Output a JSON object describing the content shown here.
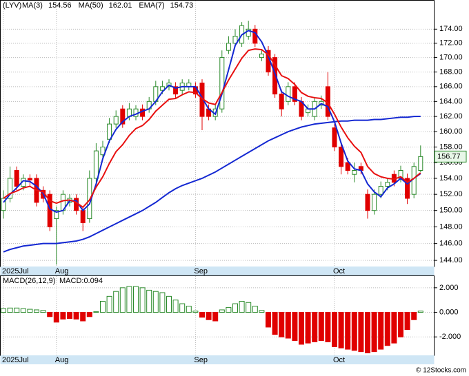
{
  "chart_data": [
    {
      "type": "candlestick",
      "title": "(LYV)",
      "categories": [
        "2025Jul",
        null,
        null,
        null,
        null,
        null,
        null,
        null,
        "Aug",
        null,
        null,
        null,
        null,
        null,
        null,
        null,
        null,
        null,
        null,
        null,
        null,
        null,
        null,
        null,
        null,
        null,
        null,
        null,
        null,
        "Sep",
        null,
        null,
        null,
        null,
        null,
        null,
        null,
        null,
        null,
        null,
        null,
        null,
        null,
        null,
        null,
        null,
        null,
        null,
        null,
        null,
        "Oct",
        null,
        null,
        null,
        null,
        null,
        null,
        null,
        null,
        null,
        null,
        null,
        null,
        null
      ],
      "open": [
        150,
        151.5,
        155,
        153,
        154,
        154,
        152.5,
        152,
        149,
        150,
        151,
        151.5,
        150,
        149,
        154,
        157,
        159,
        161,
        163,
        162,
        162,
        163,
        163,
        164,
        165.5,
        166,
        166,
        165.5,
        166,
        166,
        166.5,
        163,
        162,
        163,
        171,
        172,
        172,
        173,
        174,
        170,
        171,
        170,
        165,
        164,
        166,
        164,
        162.5,
        162,
        163.5,
        166,
        160.5,
        158,
        156,
        154.5,
        155.5,
        152,
        150,
        152,
        153,
        154.5,
        154,
        154,
        152,
        155
      ],
      "high": [
        152.5,
        155.5,
        155.5,
        154.5,
        154.5,
        154.5,
        153,
        152.5,
        150.5,
        152.5,
        152,
        152,
        150.5,
        155,
        158.5,
        158.8,
        161.8,
        162.8,
        163.5,
        163.8,
        163.5,
        163.6,
        164.6,
        166.8,
        166.8,
        167,
        166.6,
        167,
        167,
        166.6,
        167,
        163.6,
        163.6,
        171,
        173,
        174,
        175,
        175.2,
        174.6,
        171,
        171.6,
        170.5,
        165.6,
        166.6,
        166.6,
        164.6,
        163.6,
        164.6,
        164.8,
        168,
        161,
        158.6,
        156.6,
        156,
        156,
        152.6,
        152.6,
        153.6,
        154,
        155,
        155.6,
        154.6,
        156,
        158.2
      ],
      "low": [
        149,
        151,
        152.5,
        152.5,
        153,
        150.5,
        151,
        147.5,
        143.5,
        149.5,
        150.5,
        149.5,
        147.5,
        148.5,
        153.5,
        156.5,
        158.5,
        160.5,
        160.5,
        161.5,
        161.5,
        161.5,
        162.5,
        163.5,
        165,
        165.5,
        164.5,
        165,
        165.5,
        164.5,
        160.2,
        161.5,
        161.5,
        162.5,
        170.5,
        171.5,
        171.5,
        172.5,
        171.5,
        169.5,
        167.5,
        164.5,
        162,
        163.5,
        163.5,
        161.5,
        162,
        161.5,
        163,
        161.5,
        157.5,
        154.5,
        154.5,
        153.5,
        154.5,
        149,
        149.5,
        151.5,
        152.5,
        153,
        153.5,
        150.8,
        151.5,
        154.8
      ],
      "close": [
        151.5,
        154,
        153,
        154,
        153.8,
        151,
        151.5,
        148,
        150,
        152,
        151.5,
        150,
        148.5,
        154,
        157.5,
        158,
        161,
        162,
        161,
        163,
        163,
        162,
        164,
        166,
        166,
        166.5,
        165,
        166.5,
        166.5,
        165,
        162,
        162,
        163,
        170,
        172,
        173,
        174.5,
        174,
        172,
        170.5,
        168,
        165,
        163,
        166,
        164,
        162,
        163,
        164,
        164,
        162,
        158,
        155.5,
        155,
        155,
        155,
        150,
        152,
        153,
        153.5,
        153.5,
        155,
        151.5,
        155.5,
        156.77
      ],
      "up_color": "#2a8a2a",
      "down_color": "#e00000",
      "series": [
        {
          "name": "MA(3)",
          "value": 154.56,
          "color": "#1428d2",
          "values": [
            151,
            152,
            152.8,
            153.7,
            153.6,
            153,
            152.1,
            150.2,
            149.8,
            150,
            151.2,
            151.2,
            150,
            150.8,
            153.3,
            156.5,
            158.8,
            160.3,
            161.3,
            162,
            162.3,
            162.7,
            163,
            164,
            165.3,
            166.2,
            165.8,
            166,
            166,
            166,
            164.5,
            163,
            162.3,
            165,
            168.3,
            171.7,
            173.2,
            173.8,
            173.5,
            172.2,
            170.2,
            167.8,
            165.3,
            164.7,
            164.3,
            164,
            163,
            163,
            163.7,
            163.3,
            161.3,
            158.5,
            156.2,
            155.2,
            155,
            153.3,
            152.3,
            151.7,
            152.8,
            153.3,
            154,
            153.3,
            154,
            154.6
          ]
        },
        {
          "name": "MA(50)",
          "value": 162.01,
          "color": "#1428d2",
          "values": [
            145,
            145.3,
            145.5,
            145.7,
            145.8,
            145.9,
            146,
            146,
            146,
            146.1,
            146.2,
            146.3,
            146.5,
            146.8,
            147.2,
            147.6,
            148,
            148.4,
            148.8,
            149.2,
            149.6,
            150,
            150.5,
            151,
            151.6,
            152.2,
            152.7,
            153.1,
            153.4,
            153.7,
            154,
            154.4,
            154.8,
            155.3,
            155.8,
            156.3,
            156.8,
            157.3,
            157.8,
            158.3,
            158.8,
            159.2,
            159.6,
            160,
            160.3,
            160.6,
            160.8,
            161,
            161.1,
            161.2,
            161.3,
            161.4,
            161.4,
            161.5,
            161.5,
            161.5,
            161.6,
            161.6,
            161.7,
            161.8,
            161.9,
            161.9,
            162,
            162.01
          ]
        },
        {
          "name": "EMA(7)",
          "value": 154.73,
          "color": "#e81010",
          "values": [
            151.5,
            152.1,
            152.4,
            152.8,
            153,
            152.5,
            152.3,
            151.2,
            150.9,
            151.2,
            151.3,
            151,
            150.4,
            151.3,
            152.9,
            154.2,
            155.9,
            157.4,
            158.3,
            159.5,
            160.4,
            160.8,
            161.6,
            162.7,
            163.5,
            164.3,
            164.4,
            164.9,
            165.3,
            165.2,
            164.4,
            163.8,
            163.6,
            165.2,
            166.9,
            168.4,
            169.9,
            171,
            171.2,
            171.1,
            170.4,
            169,
            167.5,
            167.1,
            166.3,
            165.2,
            164.7,
            164.5,
            164.4,
            163.8,
            162.3,
            160.6,
            159.2,
            158.1,
            157.3,
            155.5,
            154.6,
            154.2,
            154,
            153.9,
            154.2,
            153.5,
            154,
            154.7
          ]
        }
      ],
      "ylim": [
        143.2,
        178.2
      ],
      "log_scale": true,
      "grid": true,
      "yticks": [
        {
          "value": 144,
          "label": "144.00"
        },
        {
          "value": 146,
          "label": "146.00"
        },
        {
          "value": 148,
          "label": "148.00"
        },
        {
          "value": 150,
          "label": "150.00"
        },
        {
          "value": 152,
          "label": "152.00"
        },
        {
          "value": 154,
          "label": "154.00"
        },
        {
          "value": 156,
          "label": "156.00"
        },
        {
          "value": 158,
          "label": "158.00"
        },
        {
          "value": 160,
          "label": "160.00"
        },
        {
          "value": 162,
          "label": "162.00"
        },
        {
          "value": 164,
          "label": "164.00"
        },
        {
          "value": 166,
          "label": "166.00"
        },
        {
          "value": 168,
          "label": "168.00"
        },
        {
          "value": 170,
          "label": "170.00"
        },
        {
          "value": 172,
          "label": "172.00"
        },
        {
          "value": 174,
          "label": "174.00"
        }
      ]
    },
    {
      "type": "bar",
      "title": "MACD(26,12,9)",
      "subtitle": "MACD:0.094",
      "categories": [
        "2025Jul",
        null,
        null,
        null,
        null,
        null,
        null,
        null,
        "Aug",
        null,
        null,
        null,
        null,
        null,
        null,
        null,
        null,
        null,
        null,
        null,
        null,
        null,
        null,
        null,
        null,
        null,
        null,
        null,
        null,
        "Sep",
        null,
        null,
        null,
        null,
        null,
        null,
        null,
        null,
        null,
        null,
        null,
        null,
        null,
        null,
        null,
        null,
        null,
        null,
        null,
        null,
        "Oct",
        null,
        null,
        null,
        null,
        null,
        null,
        null,
        null,
        null,
        null,
        null,
        null,
        null
      ],
      "values": [
        0.3,
        0.35,
        0.35,
        0.3,
        0.25,
        0.2,
        0.15,
        -0.35,
        -0.8,
        -0.55,
        -0.5,
        -0.55,
        -0.7,
        -0.35,
        0.05,
        0.9,
        1.3,
        1.7,
        2.0,
        2.1,
        2.1,
        2.0,
        1.8,
        1.7,
        1.6,
        1.3,
        1.0,
        0.7,
        0.5,
        0.1,
        -0.4,
        -0.6,
        -0.7,
        0.2,
        0.4,
        0.7,
        0.9,
        0.8,
        0.5,
        0.15,
        -1.2,
        -1.8,
        -2.0,
        -2.1,
        -2.3,
        -2.6,
        -2.5,
        -2.4,
        -2.3,
        -2.4,
        -2.8,
        -2.9,
        -3.0,
        -3.1,
        -3.2,
        -3.3,
        -3.2,
        -3.0,
        -2.7,
        -2.5,
        -2.0,
        -1.4,
        -0.6,
        0.1
      ],
      "up_color": "#2a8a2a",
      "down_color": "#e00000",
      "ylim": [
        -3.5,
        3.0
      ],
      "grid": true,
      "yticks": [
        {
          "value": -2,
          "label": "-2.000"
        },
        {
          "value": 0,
          "label": "0.000"
        },
        {
          "value": 2,
          "label": "2.000"
        }
      ]
    }
  ],
  "watermark": "© 12Stocks.com"
}
